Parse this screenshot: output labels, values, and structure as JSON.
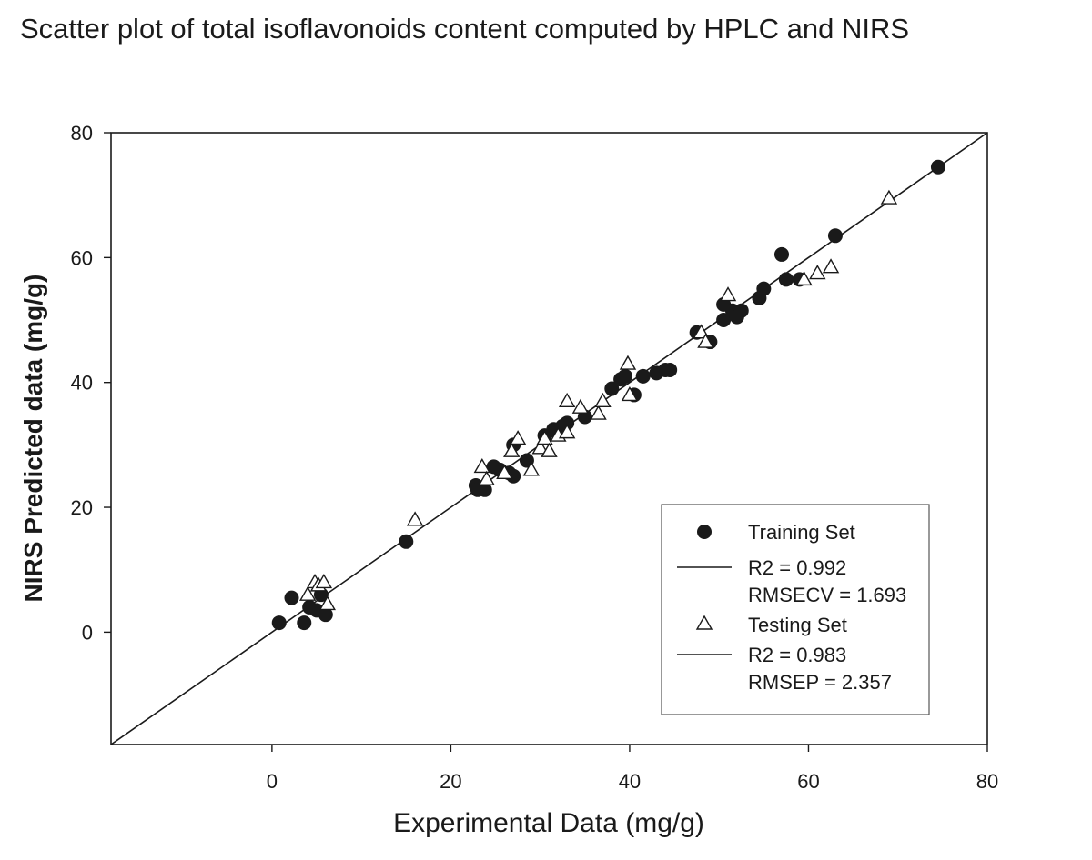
{
  "chart_data": {
    "type": "scatter",
    "title": "Scatter plot of total isoflavonoids content computed by HPLC and NIRS",
    "xlabel": "Experimental Data (mg/g)",
    "ylabel": "NIRS Predicted data (mg/g)",
    "xlim": [
      -18,
      80
    ],
    "ylim": [
      -18,
      80
    ],
    "xticks": [
      0,
      20,
      40,
      60,
      80
    ],
    "yticks": [
      0,
      20,
      40,
      60,
      80
    ],
    "grid": false,
    "legend_position": "bottom-right",
    "reference_line": {
      "from": [
        -18,
        -18
      ],
      "to": [
        80,
        80
      ]
    },
    "series": [
      {
        "name": "Training Set",
        "marker": "filled-circle",
        "fit": {
          "r2_label": "R2 = 0.992",
          "error_label": "RMSECV = 1.693"
        },
        "points": [
          [
            0.8,
            1.5
          ],
          [
            2.2,
            5.5
          ],
          [
            3.6,
            1.5
          ],
          [
            4.2,
            4.0
          ],
          [
            5.0,
            3.5
          ],
          [
            5.5,
            6.0
          ],
          [
            6.0,
            2.8
          ],
          [
            15.0,
            14.5
          ],
          [
            22.8,
            23.5
          ],
          [
            23.0,
            22.8
          ],
          [
            23.8,
            22.8
          ],
          [
            24.8,
            26.5
          ],
          [
            25.5,
            26.0
          ],
          [
            26.5,
            25.5
          ],
          [
            27.0,
            25.0
          ],
          [
            27.0,
            30.0
          ],
          [
            28.5,
            27.5
          ],
          [
            30.5,
            31.5
          ],
          [
            31.5,
            32.5
          ],
          [
            32.5,
            33.0
          ],
          [
            33.0,
            33.5
          ],
          [
            35.0,
            34.5
          ],
          [
            38.0,
            39.0
          ],
          [
            39.0,
            40.5
          ],
          [
            39.5,
            41.0
          ],
          [
            40.5,
            38.0
          ],
          [
            41.5,
            41.0
          ],
          [
            43.0,
            41.5
          ],
          [
            44.0,
            42.0
          ],
          [
            44.5,
            42.0
          ],
          [
            47.5,
            48.0
          ],
          [
            49.0,
            46.5
          ],
          [
            50.5,
            50.0
          ],
          [
            50.5,
            52.5
          ],
          [
            51.5,
            51.5
          ],
          [
            52.0,
            50.5
          ],
          [
            52.5,
            51.5
          ],
          [
            54.5,
            53.5
          ],
          [
            55.0,
            55.0
          ],
          [
            57.0,
            60.5
          ],
          [
            57.5,
            56.5
          ],
          [
            59.0,
            56.5
          ],
          [
            63.0,
            63.5
          ],
          [
            74.5,
            74.5
          ]
        ]
      },
      {
        "name": "Testing Set",
        "marker": "open-triangle",
        "fit": {
          "r2_label": "R2 = 0.983",
          "error_label": "RMSEP = 2.357"
        },
        "points": [
          [
            4.0,
            6.0
          ],
          [
            4.8,
            8.0
          ],
          [
            5.2,
            7.5
          ],
          [
            5.8,
            8.0
          ],
          [
            6.2,
            4.5
          ],
          [
            16.0,
            18.0
          ],
          [
            23.5,
            26.5
          ],
          [
            24.0,
            24.5
          ],
          [
            26.0,
            25.5
          ],
          [
            26.8,
            29.0
          ],
          [
            27.5,
            31.0
          ],
          [
            29.0,
            26.0
          ],
          [
            30.0,
            29.5
          ],
          [
            30.5,
            31.0
          ],
          [
            31.0,
            29.0
          ],
          [
            32.0,
            31.5
          ],
          [
            33.0,
            37.0
          ],
          [
            33.0,
            32.0
          ],
          [
            34.5,
            36.0
          ],
          [
            36.5,
            35.0
          ],
          [
            37.0,
            37.0
          ],
          [
            39.8,
            43.0
          ],
          [
            40.0,
            38.0
          ],
          [
            48.0,
            48.0
          ],
          [
            48.5,
            46.5
          ],
          [
            51.0,
            54.0
          ],
          [
            59.5,
            56.5
          ],
          [
            61.0,
            57.5
          ],
          [
            62.5,
            58.5
          ],
          [
            69.0,
            69.5
          ]
        ]
      }
    ]
  }
}
